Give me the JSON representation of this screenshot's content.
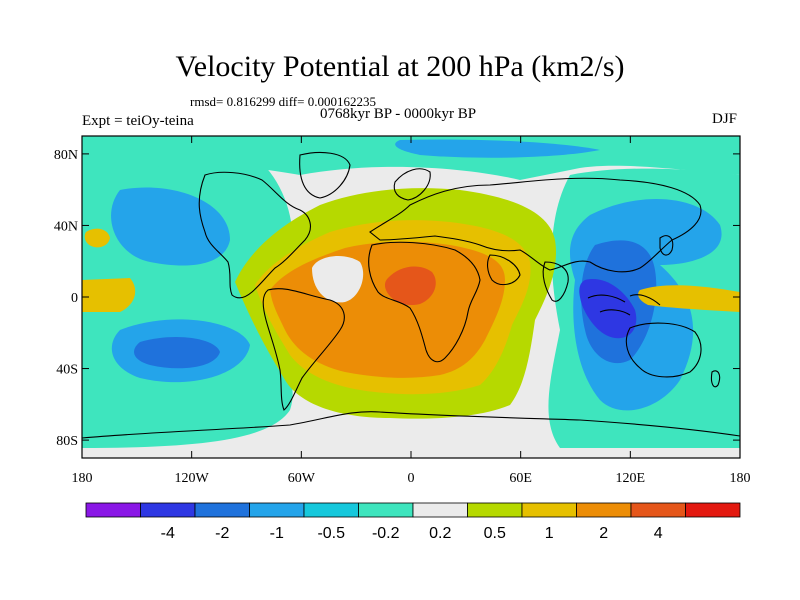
{
  "title": "Velocity Potential at 200 hPa (km2/s)",
  "stats": "rmsd= 0.816299 diff= 0.000162235",
  "expt": "Expt = teiOy-teina",
  "period": "0768kyr BP - 0000kyr BP",
  "season": "DJF",
  "map": {
    "lon_range": [
      -180,
      180
    ],
    "lat_range": [
      -90,
      90
    ],
    "x_ticks": [
      {
        "lon": -180,
        "label": "180"
      },
      {
        "lon": -120,
        "label": "120W"
      },
      {
        "lon": -60,
        "label": "60W"
      },
      {
        "lon": 0,
        "label": "0"
      },
      {
        "lon": 60,
        "label": "60E"
      },
      {
        "lon": 120,
        "label": "120E"
      },
      {
        "lon": 180,
        "label": "180"
      }
    ],
    "y_ticks": [
      {
        "lat": 80,
        "label": "80N"
      },
      {
        "lat": 40,
        "label": "40N"
      },
      {
        "lat": 0,
        "label": "0"
      },
      {
        "lat": -40,
        "label": "40S"
      },
      {
        "lat": -80,
        "label": "80S"
      }
    ]
  },
  "colorbar": {
    "colors": [
      "#8a17e6",
      "#2e37e3",
      "#1f72dc",
      "#24a4ea",
      "#16c8dc",
      "#3ee5be",
      "#ebebeb",
      "#b6d900",
      "#e6c000",
      "#ec8d06",
      "#e5561a",
      "#e31910"
    ],
    "labels": [
      "-4",
      "-2",
      "-1",
      "-0.5",
      "-0.2",
      "0.2",
      "0.5",
      "1",
      "2",
      "4"
    ]
  }
}
